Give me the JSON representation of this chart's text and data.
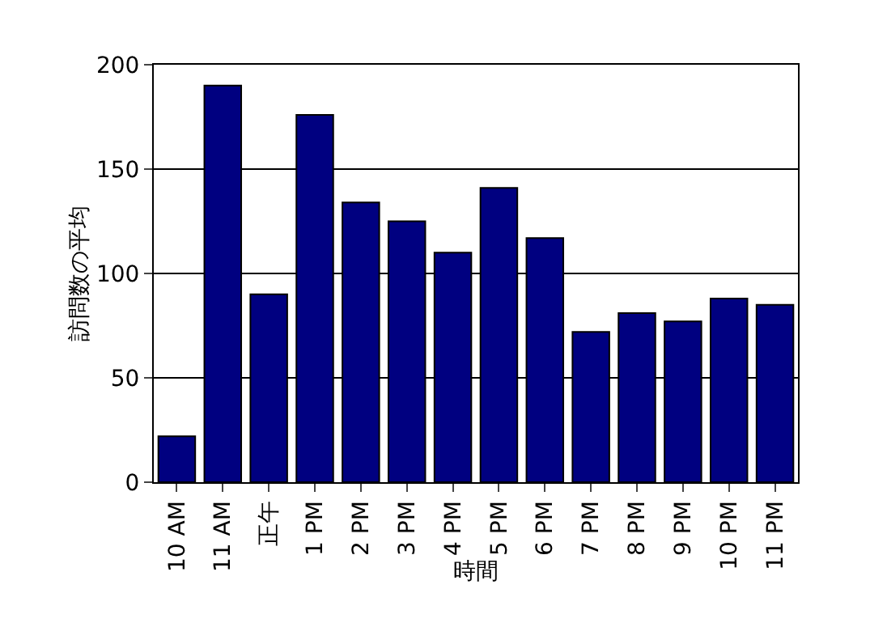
{
  "chart_data": {
    "type": "bar",
    "xlabel": "時間",
    "ylabel": "訪問数の平均",
    "categories": [
      "10 AM",
      "11 AM",
      "正午",
      "1 PM",
      "2 PM",
      "3 PM",
      "4 PM",
      "5 PM",
      "6 PM",
      "7 PM",
      "8 PM",
      "9 PM",
      "10 PM",
      "11 PM"
    ],
    "values": [
      22,
      190,
      90,
      176,
      134,
      125,
      110,
      141,
      117,
      72,
      81,
      77,
      88,
      85
    ],
    "color": "#000080",
    "ylim": [
      0,
      200
    ],
    "yticks": [
      0,
      50,
      100,
      150,
      200
    ],
    "grid": "y"
  }
}
